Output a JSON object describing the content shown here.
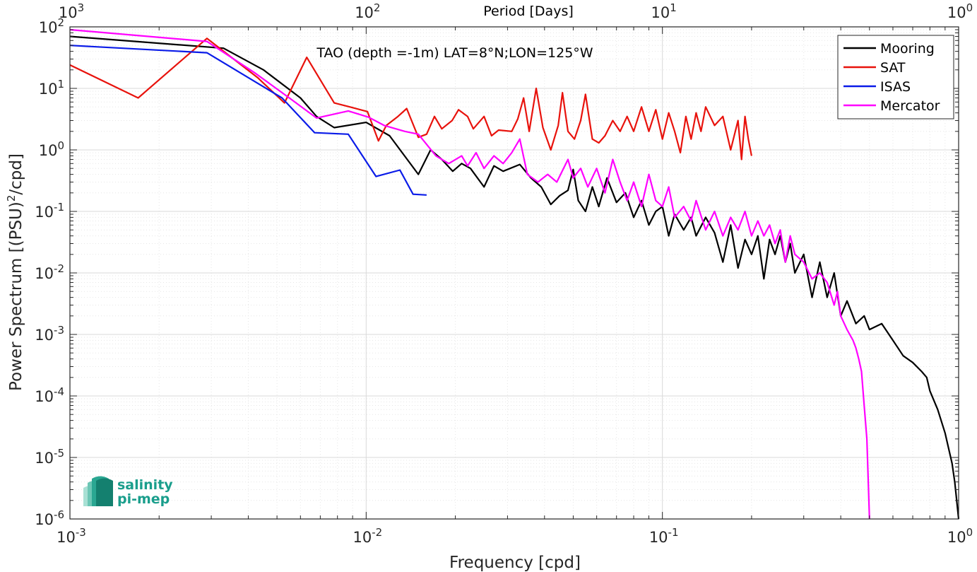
{
  "chart_data": {
    "type": "line",
    "annotation": "TAO (depth =-1m) LAT=8°N;LON=125°W",
    "xlabel": "Frequency [cpd]",
    "ylabel": "Power Spectrum [(PSU)",
    "ylabel_sup": "2",
    "ylabel_end": "/cpd]",
    "top_xlabel": "Period [Days]",
    "xscale": "log",
    "yscale": "log",
    "xlim": [
      0.001,
      1
    ],
    "ylim": [
      1e-06,
      100
    ],
    "x_ticks": [
      {
        "value": 0.001,
        "base": "10",
        "exp": "-3"
      },
      {
        "value": 0.01,
        "base": "10",
        "exp": "-2"
      },
      {
        "value": 0.1,
        "base": "10",
        "exp": "-1"
      },
      {
        "value": 1,
        "base": "10",
        "exp": "0"
      }
    ],
    "y_ticks": [
      {
        "value": 1e-06,
        "base": "10",
        "exp": "-6"
      },
      {
        "value": 1e-05,
        "base": "10",
        "exp": "-5"
      },
      {
        "value": 0.0001,
        "base": "10",
        "exp": "-4"
      },
      {
        "value": 0.001,
        "base": "10",
        "exp": "-3"
      },
      {
        "value": 0.01,
        "base": "10",
        "exp": "-2"
      },
      {
        "value": 0.1,
        "base": "10",
        "exp": "-1"
      },
      {
        "value": 1,
        "base": "10",
        "exp": "0"
      },
      {
        "value": 10,
        "base": "10",
        "exp": "1"
      },
      {
        "value": 100,
        "base": "10",
        "exp": "2"
      }
    ],
    "top_ticks": [
      {
        "value": 0.001,
        "base": "10",
        "exp": "3"
      },
      {
        "value": 0.01,
        "base": "10",
        "exp": "2"
      },
      {
        "value": 0.1,
        "base": "10",
        "exp": "1"
      },
      {
        "value": 1,
        "base": "10",
        "exp": "0"
      }
    ],
    "grid": true,
    "legend_position": "top-right",
    "series": [
      {
        "name": "Mooring",
        "color": "#000000",
        "points": [
          [
            0.001,
            70
          ],
          [
            0.0033,
            45
          ],
          [
            0.0045,
            20
          ],
          [
            0.006,
            7
          ],
          [
            0.0068,
            3.5
          ],
          [
            0.0078,
            2.3
          ],
          [
            0.01,
            2.8
          ],
          [
            0.012,
            1.7
          ],
          [
            0.015,
            0.4
          ],
          [
            0.0165,
            1.0
          ],
          [
            0.018,
            0.7
          ],
          [
            0.0196,
            0.45
          ],
          [
            0.021,
            0.6
          ],
          [
            0.0225,
            0.5
          ],
          [
            0.025,
            0.25
          ],
          [
            0.027,
            0.55
          ],
          [
            0.029,
            0.45
          ],
          [
            0.033,
            0.58
          ],
          [
            0.036,
            0.35
          ],
          [
            0.039,
            0.25
          ],
          [
            0.042,
            0.13
          ],
          [
            0.045,
            0.18
          ],
          [
            0.048,
            0.22
          ],
          [
            0.05,
            0.48
          ],
          [
            0.052,
            0.15
          ],
          [
            0.055,
            0.1
          ],
          [
            0.058,
            0.25
          ],
          [
            0.061,
            0.12
          ],
          [
            0.065,
            0.35
          ],
          [
            0.07,
            0.14
          ],
          [
            0.075,
            0.2
          ],
          [
            0.08,
            0.08
          ],
          [
            0.085,
            0.15
          ],
          [
            0.09,
            0.06
          ],
          [
            0.095,
            0.1
          ],
          [
            0.1,
            0.12
          ],
          [
            0.105,
            0.04
          ],
          [
            0.11,
            0.09
          ],
          [
            0.118,
            0.05
          ],
          [
            0.125,
            0.08
          ],
          [
            0.13,
            0.04
          ],
          [
            0.14,
            0.08
          ],
          [
            0.15,
            0.045
          ],
          [
            0.16,
            0.015
          ],
          [
            0.17,
            0.06
          ],
          [
            0.18,
            0.012
          ],
          [
            0.19,
            0.035
          ],
          [
            0.2,
            0.02
          ],
          [
            0.21,
            0.04
          ],
          [
            0.22,
            0.008
          ],
          [
            0.23,
            0.035
          ],
          [
            0.24,
            0.02
          ],
          [
            0.25,
            0.04
          ],
          [
            0.26,
            0.015
          ],
          [
            0.27,
            0.03
          ],
          [
            0.28,
            0.01
          ],
          [
            0.3,
            0.02
          ],
          [
            0.32,
            0.004
          ],
          [
            0.34,
            0.015
          ],
          [
            0.36,
            0.004
          ],
          [
            0.38,
            0.01
          ],
          [
            0.4,
            0.002
          ],
          [
            0.42,
            0.0035
          ],
          [
            0.45,
            0.0015
          ],
          [
            0.48,
            0.002
          ],
          [
            0.5,
            0.0012
          ],
          [
            0.55,
            0.0015
          ],
          [
            0.6,
            0.0008
          ],
          [
            0.65,
            0.00045
          ],
          [
            0.7,
            0.00035
          ],
          [
            0.75,
            0.00025
          ],
          [
            0.78,
            0.0002
          ],
          [
            0.8,
            0.00012
          ],
          [
            0.85,
            6e-05
          ],
          [
            0.9,
            2.5e-05
          ],
          [
            0.95,
            8e-06
          ],
          [
            0.97,
            4e-06
          ],
          [
            1.0,
            1e-06
          ]
        ]
      },
      {
        "name": "SAT",
        "color": "#e8120c",
        "points": [
          [
            0.001,
            24
          ],
          [
            0.0017,
            7
          ],
          [
            0.0029,
            65
          ],
          [
            0.0043,
            15
          ],
          [
            0.0053,
            5.8
          ],
          [
            0.0063,
            32
          ],
          [
            0.0078,
            5.8
          ],
          [
            0.0088,
            5.0
          ],
          [
            0.0101,
            4.2
          ],
          [
            0.011,
            1.4
          ],
          [
            0.0117,
            2.5
          ],
          [
            0.0128,
            3.5
          ],
          [
            0.0137,
            4.7
          ],
          [
            0.015,
            1.6
          ],
          [
            0.016,
            1.8
          ],
          [
            0.017,
            3.5
          ],
          [
            0.018,
            2.2
          ],
          [
            0.0195,
            3.0
          ],
          [
            0.0205,
            4.5
          ],
          [
            0.022,
            3.5
          ],
          [
            0.023,
            2.2
          ],
          [
            0.025,
            3.5
          ],
          [
            0.0265,
            1.7
          ],
          [
            0.028,
            2.1
          ],
          [
            0.031,
            2.0
          ],
          [
            0.0325,
            3.2
          ],
          [
            0.034,
            7.0
          ],
          [
            0.0355,
            2.0
          ],
          [
            0.0375,
            10.0
          ],
          [
            0.0395,
            2.3
          ],
          [
            0.042,
            1.0
          ],
          [
            0.0445,
            2.5
          ],
          [
            0.046,
            8.5
          ],
          [
            0.048,
            2.0
          ],
          [
            0.0505,
            1.5
          ],
          [
            0.053,
            3.0
          ],
          [
            0.055,
            8.0
          ],
          [
            0.058,
            1.5
          ],
          [
            0.061,
            1.3
          ],
          [
            0.064,
            1.7
          ],
          [
            0.068,
            3.0
          ],
          [
            0.072,
            2.0
          ],
          [
            0.076,
            3.5
          ],
          [
            0.08,
            2.0
          ],
          [
            0.085,
            5.0
          ],
          [
            0.09,
            2.0
          ],
          [
            0.095,
            4.5
          ],
          [
            0.1,
            1.5
          ],
          [
            0.105,
            4.0
          ],
          [
            0.11,
            2.0
          ],
          [
            0.115,
            0.9
          ],
          [
            0.12,
            3.5
          ],
          [
            0.125,
            1.5
          ],
          [
            0.13,
            4.0
          ],
          [
            0.135,
            2.0
          ],
          [
            0.14,
            5.0
          ],
          [
            0.15,
            2.5
          ],
          [
            0.16,
            3.5
          ],
          [
            0.17,
            1.0
          ],
          [
            0.18,
            3.0
          ],
          [
            0.185,
            0.7
          ],
          [
            0.19,
            3.5
          ],
          [
            0.195,
            1.5
          ],
          [
            0.2,
            0.8
          ]
        ]
      },
      {
        "name": "ISAS",
        "color": "#0a1be8",
        "points": [
          [
            0.001,
            50
          ],
          [
            0.0029,
            38
          ],
          [
            0.0052,
            7
          ],
          [
            0.0067,
            1.9
          ],
          [
            0.0087,
            1.8
          ],
          [
            0.0108,
            0.37
          ],
          [
            0.013,
            0.47
          ],
          [
            0.0144,
            0.19
          ],
          [
            0.016,
            0.185
          ]
        ]
      },
      {
        "name": "Mercator",
        "color": "#ff00ff",
        "points": [
          [
            0.001,
            90
          ],
          [
            0.0029,
            58
          ],
          [
            0.0042,
            18
          ],
          [
            0.0055,
            7
          ],
          [
            0.0068,
            3.3
          ],
          [
            0.0087,
            4.3
          ],
          [
            0.0102,
            3.4
          ],
          [
            0.0115,
            2.5
          ],
          [
            0.0135,
            2.0
          ],
          [
            0.015,
            1.8
          ],
          [
            0.0172,
            0.8
          ],
          [
            0.019,
            0.6
          ],
          [
            0.021,
            0.8
          ],
          [
            0.022,
            0.55
          ],
          [
            0.0235,
            0.9
          ],
          [
            0.025,
            0.5
          ],
          [
            0.027,
            0.8
          ],
          [
            0.029,
            0.6
          ],
          [
            0.031,
            0.9
          ],
          [
            0.033,
            1.5
          ],
          [
            0.035,
            0.4
          ],
          [
            0.038,
            0.3
          ],
          [
            0.041,
            0.4
          ],
          [
            0.044,
            0.3
          ],
          [
            0.048,
            0.7
          ],
          [
            0.05,
            0.35
          ],
          [
            0.053,
            0.5
          ],
          [
            0.056,
            0.25
          ],
          [
            0.06,
            0.5
          ],
          [
            0.064,
            0.2
          ],
          [
            0.068,
            0.7
          ],
          [
            0.072,
            0.3
          ],
          [
            0.076,
            0.15
          ],
          [
            0.08,
            0.3
          ],
          [
            0.085,
            0.12
          ],
          [
            0.09,
            0.4
          ],
          [
            0.095,
            0.15
          ],
          [
            0.1,
            0.12
          ],
          [
            0.105,
            0.25
          ],
          [
            0.11,
            0.08
          ],
          [
            0.118,
            0.12
          ],
          [
            0.125,
            0.07
          ],
          [
            0.13,
            0.15
          ],
          [
            0.14,
            0.05
          ],
          [
            0.15,
            0.1
          ],
          [
            0.16,
            0.04
          ],
          [
            0.17,
            0.08
          ],
          [
            0.18,
            0.05
          ],
          [
            0.19,
            0.1
          ],
          [
            0.2,
            0.04
          ],
          [
            0.21,
            0.07
          ],
          [
            0.22,
            0.04
          ],
          [
            0.23,
            0.06
          ],
          [
            0.24,
            0.03
          ],
          [
            0.25,
            0.05
          ],
          [
            0.26,
            0.015
          ],
          [
            0.27,
            0.04
          ],
          [
            0.28,
            0.02
          ],
          [
            0.3,
            0.015
          ],
          [
            0.32,
            0.008
          ],
          [
            0.34,
            0.01
          ],
          [
            0.36,
            0.007
          ],
          [
            0.38,
            0.003
          ],
          [
            0.39,
            0.005
          ],
          [
            0.4,
            0.002
          ],
          [
            0.42,
            0.0012
          ],
          [
            0.44,
            0.0008
          ],
          [
            0.45,
            0.0006
          ],
          [
            0.46,
            0.0004
          ],
          [
            0.47,
            0.00025
          ],
          [
            0.48,
            7e-05
          ],
          [
            0.49,
            2e-05
          ],
          [
            0.5,
            1e-06
          ]
        ]
      }
    ]
  },
  "logo": {
    "line1": "salinity",
    "line2": "pi-mep"
  }
}
